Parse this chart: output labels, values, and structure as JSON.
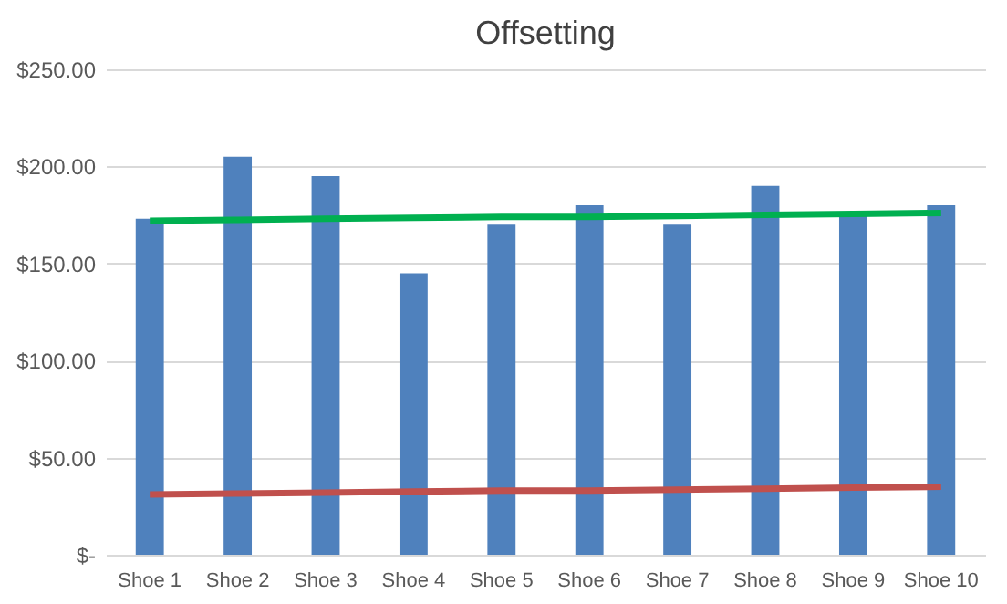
{
  "chart_data": {
    "type": "bar",
    "title": "Offsetting",
    "categories": [
      "Shoe 1",
      "Shoe 2",
      "Shoe 3",
      "Shoe 4",
      "Shoe 5",
      "Shoe 6",
      "Shoe 7",
      "Shoe 8",
      "Shoe 9",
      "Shoe 10"
    ],
    "series": [
      {
        "color": "#4f81bd",
        "values": [
          173,
          205,
          195,
          145,
          170,
          180,
          170,
          190,
          175,
          180
        ]
      },
      {
        "type": "line",
        "color": "#00b050",
        "values": [
          172,
          172.5,
          173,
          173.5,
          174,
          174,
          174.5,
          175,
          175.5,
          176
        ]
      },
      {
        "type": "line",
        "color": "#c0504d",
        "values": [
          31,
          31.5,
          32,
          32.5,
          33,
          33,
          33.5,
          34,
          34.5,
          35
        ]
      }
    ],
    "ylim": [
      0,
      250
    ],
    "yticks": [
      {
        "value": 0,
        "label": "$-"
      },
      {
        "value": 50,
        "label": "$50.00"
      },
      {
        "value": 100,
        "label": "$100.00"
      },
      {
        "value": 150,
        "label": "$150.00"
      },
      {
        "value": 200,
        "label": "$200.00"
      },
      {
        "value": 250,
        "label": "$250.00"
      }
    ],
    "grid": "y"
  }
}
